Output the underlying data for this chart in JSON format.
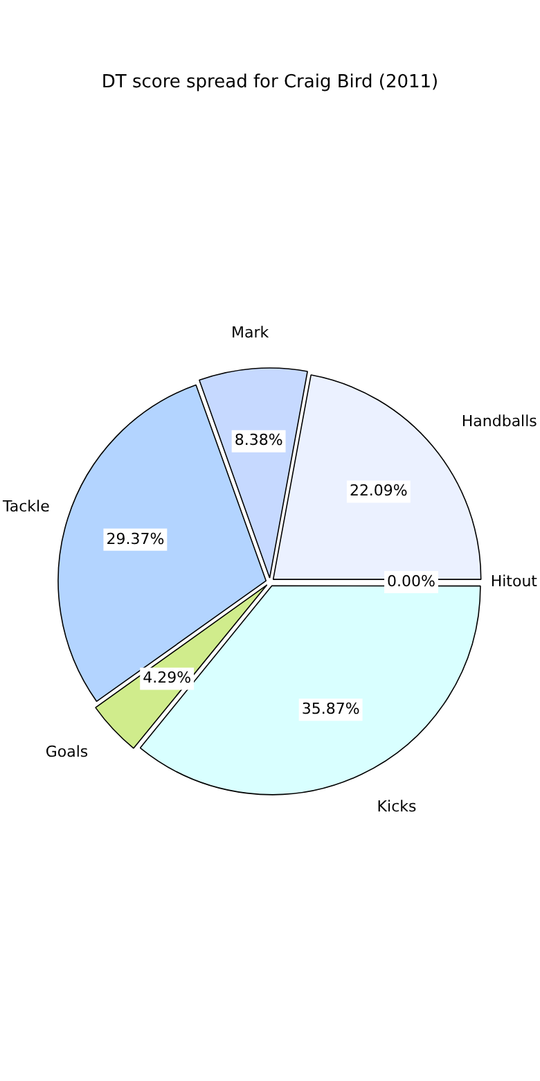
{
  "chart_data": {
    "type": "pie",
    "title": "DT score spread for Craig Bird (2011)",
    "categories": [
      "Hitout",
      "Kicks",
      "Goals",
      "Tackle",
      "Mark",
      "Handballs"
    ],
    "values": [
      0,
      35.87,
      4.29,
      29.37,
      8.38,
      22.09
    ],
    "colors": [
      "#f0f0ff",
      "#d9ffff",
      "#d0ec8c",
      "#b3d4ff",
      "#c6d9ff",
      "#ebf1ff"
    ],
    "value_labels": [
      "0.00%",
      "35.87%",
      "4.29%",
      "29.37%",
      "8.38%",
      "22.09%"
    ],
    "legend": false
  }
}
